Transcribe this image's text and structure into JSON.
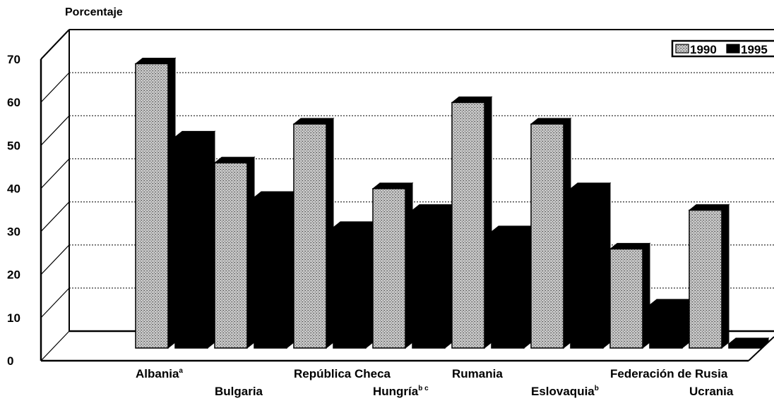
{
  "chart_data": {
    "type": "bar",
    "ylabel": "Porcentaje",
    "ylim": [
      0,
      70
    ],
    "yticks": [
      0,
      10,
      20,
      30,
      40,
      50,
      60,
      70
    ],
    "grid": true,
    "legend_position": "top-right",
    "categories": [
      {
        "name": "Albania",
        "sup": "a",
        "row": 1
      },
      {
        "name": "Bulgaria",
        "sup": "",
        "row": 2
      },
      {
        "name": "República Checa",
        "sup": "",
        "row": 1
      },
      {
        "name": "Hungría",
        "sup": "b c",
        "row": 2
      },
      {
        "name": "Rumania",
        "sup": "",
        "row": 1
      },
      {
        "name": "Eslovaquia",
        "sup": "b",
        "row": 2
      },
      {
        "name": "Federación de Rusia",
        "sup": "",
        "row": 1
      },
      {
        "name": "Ucrania",
        "sup": "",
        "row": 2
      }
    ],
    "series": [
      {
        "name": "1990",
        "color": "#b8b8b8",
        "pattern": "dotted",
        "values": [
          66,
          43,
          52,
          37,
          57,
          52,
          23,
          32
        ]
      },
      {
        "name": "1995",
        "color": "#000000",
        "pattern": "solid",
        "values": [
          49,
          35,
          28,
          32,
          27,
          37,
          10,
          1
        ]
      }
    ]
  }
}
